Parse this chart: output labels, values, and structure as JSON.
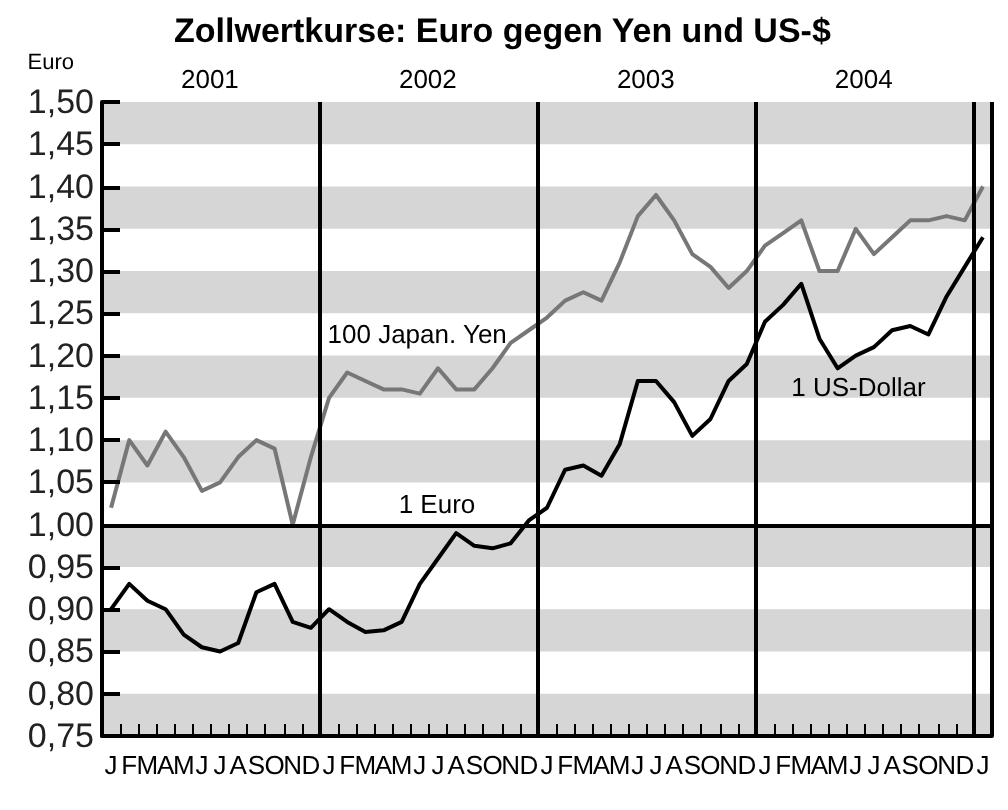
{
  "chart_data": {
    "type": "line",
    "title": "Zollwertkurse: Euro gegen Yen und US-$",
    "ylabel": "Euro",
    "categories": [
      "J",
      "F",
      "M",
      "A",
      "M",
      "J",
      "J",
      "A",
      "S",
      "O",
      "N",
      "D",
      "J",
      "F",
      "M",
      "A",
      "M",
      "J",
      "J",
      "A",
      "S",
      "O",
      "N",
      "D",
      "J",
      "F",
      "M",
      "A",
      "M",
      "J",
      "J",
      "A",
      "S",
      "O",
      "N",
      "D",
      "J",
      "F",
      "M",
      "A",
      "M",
      "J",
      "J",
      "A",
      "S",
      "O",
      "N",
      "D",
      "J"
    ],
    "series": [
      {
        "name": "100 Japan. Yen",
        "color": "#777777",
        "values": [
          1.02,
          1.1,
          1.07,
          1.11,
          1.08,
          1.04,
          1.05,
          1.08,
          1.1,
          1.09,
          1.0,
          1.08,
          1.15,
          1.18,
          1.17,
          1.16,
          1.16,
          1.155,
          1.185,
          1.16,
          1.16,
          1.185,
          1.215,
          1.23,
          1.245,
          1.265,
          1.275,
          1.265,
          1.31,
          1.365,
          1.39,
          1.36,
          1.32,
          1.305,
          1.28,
          1.3,
          1.33,
          1.345,
          1.36,
          1.3,
          1.3,
          1.35,
          1.32,
          1.34,
          1.36,
          1.36,
          1.365,
          1.36,
          1.4
        ]
      },
      {
        "name": "1 US-Dollar",
        "color": "#000000",
        "values": [
          0.9,
          0.93,
          0.91,
          0.9,
          0.87,
          0.855,
          0.85,
          0.86,
          0.92,
          0.93,
          0.885,
          0.878,
          0.9,
          0.885,
          0.873,
          0.875,
          0.885,
          0.93,
          0.96,
          0.99,
          0.975,
          0.972,
          0.978,
          1.005,
          1.02,
          1.065,
          1.07,
          1.058,
          1.095,
          1.17,
          1.17,
          1.145,
          1.105,
          1.125,
          1.17,
          1.19,
          1.24,
          1.26,
          1.285,
          1.22,
          1.185,
          1.2,
          1.21,
          1.23,
          1.235,
          1.225,
          1.27,
          1.305,
          1.34
        ]
      }
    ],
    "ylim": [
      0.75,
      1.5
    ],
    "yticks": [
      {
        "value": 0.75,
        "label": "0,75"
      },
      {
        "value": 0.8,
        "label": "0,80"
      },
      {
        "value": 0.85,
        "label": "0,85"
      },
      {
        "value": 0.9,
        "label": "0,90"
      },
      {
        "value": 0.95,
        "label": "0,95"
      },
      {
        "value": 1.0,
        "label": "1,00"
      },
      {
        "value": 1.05,
        "label": "1,05"
      },
      {
        "value": 1.1,
        "label": "1,10"
      },
      {
        "value": 1.15,
        "label": "1,15"
      },
      {
        "value": 1.2,
        "label": "1,20"
      },
      {
        "value": 1.25,
        "label": "1,25"
      },
      {
        "value": 1.3,
        "label": "1,30"
      },
      {
        "value": 1.35,
        "label": "1,35"
      },
      {
        "value": 1.4,
        "label": "1,40"
      },
      {
        "value": 1.45,
        "label": "1,45"
      },
      {
        "value": 1.5,
        "label": "1,50"
      }
    ],
    "ref_lines": [
      {
        "axis": "y",
        "value": 1.0,
        "label": "1 Euro",
        "color": "#000000"
      }
    ],
    "annotations": [
      "2001",
      "2002",
      "2003",
      "2004"
    ],
    "bands": [
      {
        "axis": "y",
        "from": 0.75,
        "to": 0.8,
        "color": "#d6d6d6"
      },
      {
        "axis": "y",
        "from": 0.85,
        "to": 0.9,
        "color": "#d6d6d6"
      },
      {
        "axis": "y",
        "from": 0.95,
        "to": 1.0,
        "color": "#d6d6d6"
      },
      {
        "axis": "y",
        "from": 1.05,
        "to": 1.1,
        "color": "#d6d6d6"
      },
      {
        "axis": "y",
        "from": 1.15,
        "to": 1.2,
        "color": "#d6d6d6"
      },
      {
        "axis": "y",
        "from": 1.25,
        "to": 1.3,
        "color": "#d6d6d6"
      },
      {
        "axis": "y",
        "from": 1.35,
        "to": 1.4,
        "color": "#d6d6d6"
      },
      {
        "axis": "y",
        "from": 1.45,
        "to": 1.5,
        "color": "#d6d6d6"
      }
    ],
    "legend": false,
    "marker": "none",
    "line_style": "solid"
  }
}
